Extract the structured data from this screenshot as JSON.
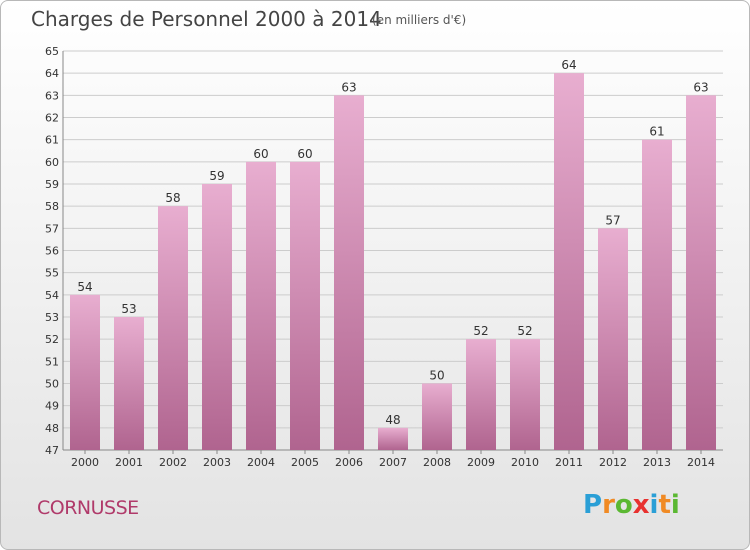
{
  "header": {
    "title": "Charges de Personnel 2000 à 2014",
    "subtitle": "(en milliers d'€)"
  },
  "footer": {
    "commune": "CORNUSSE",
    "logo_letters": [
      "P",
      "r",
      "o",
      "x",
      "i",
      "t",
      "i"
    ],
    "logo_colors": [
      "#2a9fd6",
      "#f08a24",
      "#5bb832",
      "#e8312f",
      "#2a9fd6",
      "#f08a24",
      "#5bb832"
    ]
  },
  "colors": {
    "bar_top": "#e8aed0",
    "bar_bottom": "#b0648f",
    "grid": "#cccccc"
  },
  "chart_data": {
    "type": "bar",
    "categories": [
      "2000",
      "2001",
      "2002",
      "2003",
      "2004",
      "2005",
      "2006",
      "2007",
      "2008",
      "2009",
      "2010",
      "2011",
      "2012",
      "2013",
      "2014"
    ],
    "values": [
      54,
      53,
      58,
      59,
      60,
      60,
      63,
      48,
      50,
      52,
      52,
      64,
      57,
      61,
      63
    ],
    "data_labels": [
      "54",
      "53",
      "58",
      "59",
      "60",
      "60",
      "63",
      "48",
      "50",
      "52",
      "52",
      "64",
      "57",
      "61",
      "63"
    ],
    "ylim": [
      47,
      65
    ],
    "yticks": [
      "47",
      "48",
      "49",
      "50",
      "51",
      "52",
      "53",
      "54",
      "55",
      "56",
      "57",
      "58",
      "59",
      "60",
      "61",
      "62",
      "63",
      "64",
      "65"
    ],
    "grid": true
  }
}
